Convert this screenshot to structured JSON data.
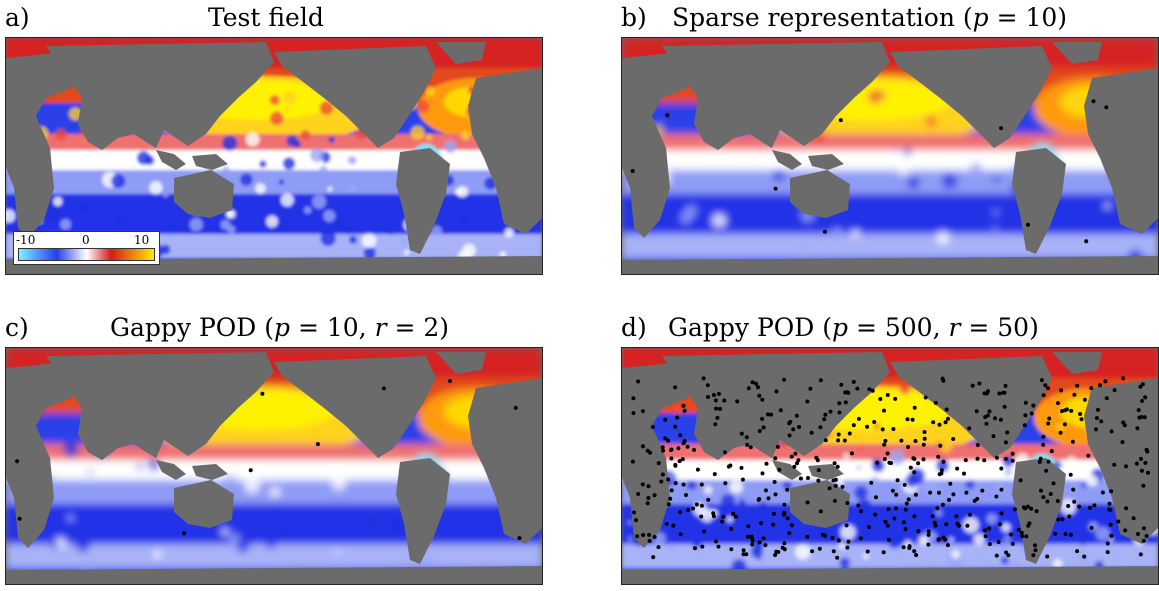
{
  "panels": [
    {
      "letter": "a)",
      "title": "Test field",
      "title_parts": [],
      "p": null,
      "r": null,
      "sensor_count": 0
    },
    {
      "letter": "b)",
      "title": "Sparse representation (",
      "title_parts": [
        "p",
        " = 10)"
      ],
      "p": 10,
      "r": null,
      "sensor_count": 10
    },
    {
      "letter": "c)",
      "title": "Gappy POD (",
      "title_parts": [
        "p",
        " = 10, ",
        "r",
        " = 2)"
      ],
      "p": 10,
      "r": 2,
      "sensor_count": 10
    },
    {
      "letter": "d)",
      "title": "Gappy POD (",
      "title_parts": [
        "p",
        " = 500, ",
        "r",
        " = 50)"
      ],
      "p": 500,
      "r": 50,
      "sensor_count": 500
    }
  ],
  "colorbar": {
    "ticks": [
      "-10",
      "0",
      "10"
    ],
    "min": -10,
    "max": 10,
    "colors": [
      "#7ff0ff",
      "#2a3bf0",
      "#ffffff",
      "#d21d1d",
      "#ffea00"
    ]
  },
  "land_color": "#6b6b6b"
}
